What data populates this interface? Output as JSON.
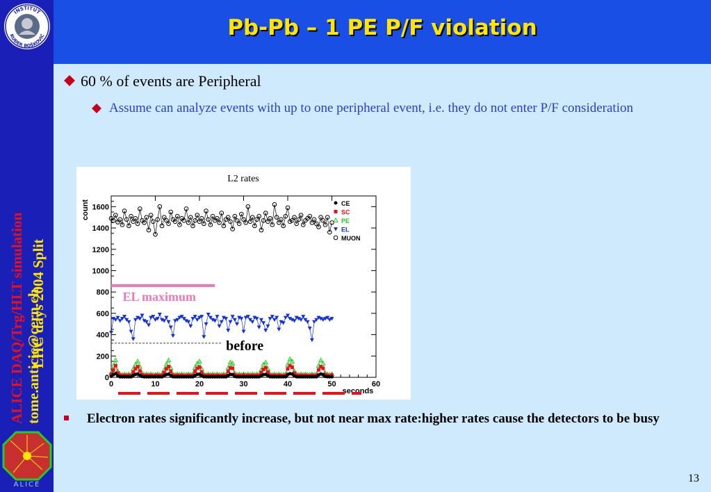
{
  "title": "Pb-Pb – 1 PE P/F violation",
  "sidebar": {
    "red_text": "ALICE DAQ/Trg/HLT simulation",
    "yellow_text": "LHC days 2004 Split",
    "author_email": "tome.anticic@cern.ch",
    "institute_logo_text_top": "INSTITUT",
    "institute_logo_text_bottom": "RUĐER BOŠKOVIĆ",
    "alice_logo_text": "ALICE"
  },
  "bullets": {
    "b1": "60 % of events are Peripheral",
    "b2": "Assume can analyze events with up to one peripheral event, i.e. they do not enter P/F consideration",
    "b3": "Electron rates significantly increase, but not near max rate:higher rates cause the detectors to be busy"
  },
  "colors": {
    "background": "#cfeafd",
    "sidebar": "#1a1fb8",
    "header": "#1a4fe6",
    "title": "#ffe600",
    "sub_bullet": "#2b3fc4",
    "el_max": "#f078b4",
    "dash_red": "#e8101a"
  },
  "page_number": "13",
  "chart_data": {
    "type": "scatter",
    "title": "L2 rates",
    "xlabel": "seconds",
    "ylabel": "count",
    "xlim": [
      0,
      60
    ],
    "ylim": [
      0,
      1700
    ],
    "xticks": [
      "0",
      "10",
      "20",
      "30",
      "40",
      "50",
      "60"
    ],
    "yticks": [
      "0",
      "200",
      "400",
      "600",
      "800",
      "1000",
      "1200",
      "1400",
      "1600"
    ],
    "legend": {
      "placement": "top-right",
      "entries": [
        {
          "name": "CE",
          "color": "#000000",
          "marker": "circle-filled"
        },
        {
          "name": "SC",
          "color": "#e8101a",
          "marker": "square"
        },
        {
          "name": "PE",
          "color": "#22cc22",
          "marker": "triangle-up-open"
        },
        {
          "name": "EL",
          "color": "#1030e0",
          "marker": "triangle-down"
        },
        {
          "name": "MUON",
          "color": "#000000",
          "marker": "circle-open"
        }
      ]
    },
    "annotations": {
      "el_maximum_label": "EL maximum",
      "el_maximum_value": 860,
      "el_maximum_x_range": [
        0,
        23.5
      ],
      "before_label": "before",
      "before_line_value": 320
    },
    "series": [
      {
        "name": "MUON",
        "x": [
          0,
          0.5,
          1,
          1.5,
          2,
          2.5,
          3,
          3.5,
          4,
          4.5,
          5,
          5.5,
          6,
          6.5,
          7,
          7.5,
          8,
          8.5,
          9,
          9.5,
          10,
          10.5,
          11,
          11.5,
          12,
          12.5,
          13,
          13.5,
          14,
          14.5,
          15,
          15.5,
          16,
          16.5,
          17,
          17.5,
          18,
          18.5,
          19,
          19.5,
          20,
          20.5,
          21,
          21.5,
          22,
          22.5,
          23,
          23.5,
          24,
          24.5,
          25,
          25.5,
          26,
          26.5,
          27,
          27.5,
          28,
          28.5,
          29,
          29.5,
          30,
          30.5,
          31,
          31.5,
          32,
          32.5,
          33,
          33.5,
          34,
          34.5,
          35,
          35.5,
          36,
          36.5,
          37,
          37.5,
          38,
          38.5,
          39,
          39.5,
          40,
          40.5,
          41,
          41.5,
          42,
          42.5,
          43,
          43.5,
          44,
          44.5,
          45,
          45.5,
          46,
          46.5,
          47,
          47.5,
          48,
          48.5,
          49,
          49.5,
          50
        ],
        "y": [
          1490,
          1470,
          1520,
          1455,
          1480,
          1430,
          1560,
          1480,
          1420,
          1510,
          1460,
          1490,
          1440,
          1580,
          1470,
          1450,
          1500,
          1380,
          1520,
          1460,
          1340,
          1480,
          1600,
          1420,
          1500,
          1470,
          1440,
          1550,
          1480,
          1460,
          1510,
          1430,
          1490,
          1470,
          1580,
          1450,
          1500,
          1420,
          1470,
          1520,
          1460,
          1490,
          1440,
          1560,
          1480,
          1430,
          1510,
          1470,
          1490,
          1450,
          1540,
          1420,
          1480,
          1500,
          1460,
          1390,
          1510,
          1470,
          1440,
          1530,
          1480,
          1450,
          1600,
          1460,
          1500,
          1420,
          1480,
          1510,
          1380,
          1470,
          1540,
          1460,
          1490,
          1430,
          1620,
          1500,
          1450,
          1480,
          1420,
          1510,
          1590,
          1460,
          1470,
          1500,
          1440,
          1480,
          1520,
          1430,
          1470,
          1490,
          1510,
          1450,
          1480,
          1440,
          1410,
          1500,
          1470,
          1430,
          1500,
          1360,
          1450
        ]
      },
      {
        "name": "EL",
        "x": [
          0,
          0.5,
          1,
          1.5,
          2,
          2.5,
          3,
          3.5,
          4,
          4.5,
          5,
          5.5,
          6,
          6.5,
          7,
          7.5,
          8,
          8.5,
          9,
          9.5,
          10,
          10.5,
          11,
          11.5,
          12,
          12.5,
          13,
          13.5,
          14,
          14.5,
          15,
          15.5,
          16,
          16.5,
          17,
          17.5,
          18,
          18.5,
          19,
          19.5,
          20,
          20.5,
          21,
          21.5,
          22,
          22.5,
          23,
          23.5,
          24,
          24.5,
          25,
          25.5,
          26,
          26.5,
          27,
          27.5,
          28,
          28.5,
          29,
          29.5,
          30,
          30.5,
          31,
          31.5,
          32,
          32.5,
          33,
          33.5,
          34,
          34.5,
          35,
          35.5,
          36,
          36.5,
          37,
          37.5,
          38,
          38.5,
          39,
          39.5,
          40,
          40.5,
          41,
          41.5,
          42,
          42.5,
          43,
          43.5,
          44,
          44.5,
          45,
          45.5,
          46,
          46.5,
          47,
          47.5,
          48,
          48.5,
          49,
          49.5,
          50
        ],
        "y": [
          420,
          550,
          540,
          560,
          530,
          550,
          570,
          540,
          520,
          430,
          360,
          540,
          560,
          550,
          580,
          530,
          520,
          490,
          560,
          570,
          540,
          550,
          590,
          540,
          530,
          560,
          520,
          470,
          390,
          530,
          540,
          560,
          570,
          550,
          530,
          520,
          480,
          550,
          570,
          540,
          560,
          570,
          380,
          500,
          590,
          560,
          540,
          530,
          570,
          480,
          520,
          560,
          550,
          440,
          520,
          570,
          540,
          500,
          560,
          550,
          430,
          560,
          570,
          540,
          520,
          560,
          550,
          470,
          540,
          510,
          440,
          480,
          550,
          570,
          540,
          560,
          450,
          520,
          510,
          560,
          580,
          550,
          540,
          530,
          560,
          550,
          540,
          570,
          540,
          520,
          460,
          350,
          520,
          540,
          560,
          550,
          540,
          550,
          560,
          540,
          550
        ]
      },
      {
        "name": "PE",
        "x": [
          0,
          0.5,
          1,
          1.5,
          2,
          2.5,
          3,
          3.5,
          4,
          4.5,
          5,
          5.5,
          6,
          6.5,
          7,
          7.5,
          8,
          8.5,
          9,
          9.5,
          10,
          10.5,
          11,
          11.5,
          12,
          12.5,
          13,
          13.5,
          14,
          14.5,
          15,
          15.5,
          16,
          16.5,
          17,
          17.5,
          18,
          18.5,
          19,
          19.5,
          20,
          20.5,
          21,
          21.5,
          22,
          22.5,
          23,
          23.5,
          24,
          24.5,
          25,
          25.5,
          26,
          26.5,
          27,
          27.5,
          28,
          28.5,
          29,
          29.5,
          30,
          30.5,
          31,
          31.5,
          32,
          32.5,
          33,
          33.5,
          34,
          34.5,
          35,
          35.5,
          36,
          36.5,
          37,
          37.5,
          38,
          38.5,
          39,
          39.5,
          40,
          40.5,
          41,
          41.5,
          42,
          42.5,
          43,
          43.5,
          44,
          44.5,
          45,
          45.5,
          46,
          46.5,
          47,
          47.5,
          48,
          48.5,
          49,
          49.5,
          50
        ],
        "y": [
          40,
          110,
          160,
          60,
          30,
          25,
          30,
          25,
          30,
          25,
          80,
          120,
          150,
          100,
          40,
          25,
          30,
          25,
          30,
          25,
          25,
          30,
          25,
          30,
          70,
          120,
          160,
          90,
          30,
          25,
          30,
          25,
          30,
          25,
          25,
          30,
          25,
          30,
          90,
          130,
          150,
          80,
          30,
          25,
          30,
          25,
          30,
          25,
          30,
          25,
          25,
          30,
          25,
          90,
          140,
          130,
          40,
          25,
          30,
          25,
          30,
          25,
          30,
          25,
          30,
          25,
          30,
          25,
          70,
          120,
          140,
          80,
          30,
          25,
          30,
          25,
          30,
          25,
          25,
          30,
          120,
          170,
          150,
          60,
          30,
          25,
          30,
          25,
          30,
          25,
          25,
          30,
          25,
          30,
          110,
          160,
          130,
          40,
          30,
          25,
          30
        ]
      },
      {
        "name": "SC",
        "x": [
          0,
          0.5,
          1,
          1.5,
          2,
          2.5,
          3,
          3.5,
          4,
          4.5,
          5,
          5.5,
          6,
          6.5,
          7,
          7.5,
          8,
          8.5,
          9,
          9.5,
          10,
          10.5,
          11,
          11.5,
          12,
          12.5,
          13,
          13.5,
          14,
          14.5,
          15,
          15.5,
          16,
          16.5,
          17,
          17.5,
          18,
          18.5,
          19,
          19.5,
          20,
          20.5,
          21,
          21.5,
          22,
          22.5,
          23,
          23.5,
          24,
          24.5,
          25,
          25.5,
          26,
          26.5,
          27,
          27.5,
          28,
          28.5,
          29,
          29.5,
          30,
          30.5,
          31,
          31.5,
          32,
          32.5,
          33,
          33.5,
          34,
          34.5,
          35,
          35.5,
          36,
          36.5,
          37,
          37.5,
          38,
          38.5,
          39,
          39.5,
          40,
          40.5,
          41,
          41.5,
          42,
          42.5,
          43,
          43.5,
          44,
          44.5,
          45,
          45.5,
          46,
          46.5,
          47,
          47.5,
          48,
          48.5,
          49,
          49.5,
          50
        ],
        "y": [
          30,
          70,
          110,
          40,
          20,
          15,
          20,
          15,
          20,
          15,
          50,
          80,
          100,
          60,
          25,
          15,
          20,
          15,
          20,
          15,
          15,
          20,
          15,
          20,
          45,
          80,
          100,
          55,
          20,
          15,
          20,
          15,
          20,
          15,
          15,
          20,
          15,
          20,
          55,
          85,
          95,
          50,
          20,
          15,
          20,
          15,
          20,
          15,
          20,
          15,
          15,
          20,
          15,
          55,
          90,
          85,
          25,
          15,
          20,
          15,
          20,
          15,
          20,
          15,
          20,
          15,
          20,
          15,
          45,
          75,
          90,
          50,
          20,
          15,
          20,
          15,
          20,
          15,
          15,
          20,
          80,
          110,
          95,
          40,
          20,
          15,
          20,
          15,
          20,
          15,
          15,
          20,
          15,
          20,
          70,
          100,
          85,
          25,
          20,
          15,
          20
        ]
      },
      {
        "name": "CE",
        "x": [
          0,
          0.5,
          1,
          1.5,
          2,
          2.5,
          3,
          3.5,
          4,
          4.5,
          5,
          5.5,
          6,
          6.5,
          7,
          7.5,
          8,
          8.5,
          9,
          9.5,
          10,
          10.5,
          11,
          11.5,
          12,
          12.5,
          13,
          13.5,
          14,
          14.5,
          15,
          15.5,
          16,
          16.5,
          17,
          17.5,
          18,
          18.5,
          19,
          19.5,
          20,
          20.5,
          21,
          21.5,
          22,
          22.5,
          23,
          23.5,
          24,
          24.5,
          25,
          25.5,
          26,
          26.5,
          27,
          27.5,
          28,
          28.5,
          29,
          29.5,
          30,
          30.5,
          31,
          31.5,
          32,
          32.5,
          33,
          33.5,
          34,
          34.5,
          35,
          35.5,
          36,
          36.5,
          37,
          37.5,
          38,
          38.5,
          39,
          39.5,
          40,
          40.5,
          41,
          41.5,
          42,
          42.5,
          43,
          43.5,
          44,
          44.5,
          45,
          45.5,
          46,
          46.5,
          47,
          47.5,
          48,
          48.5,
          49,
          49.5,
          50
        ],
        "y": [
          10,
          25,
          35,
          15,
          5,
          5,
          5,
          5,
          5,
          5,
          18,
          28,
          32,
          20,
          8,
          5,
          5,
          5,
          5,
          5,
          5,
          5,
          5,
          5,
          15,
          26,
          30,
          18,
          6,
          5,
          5,
          5,
          5,
          5,
          5,
          5,
          5,
          5,
          18,
          28,
          30,
          16,
          6,
          5,
          5,
          5,
          5,
          5,
          5,
          5,
          5,
          5,
          5,
          18,
          28,
          26,
          8,
          5,
          5,
          5,
          5,
          5,
          5,
          5,
          5,
          5,
          5,
          5,
          15,
          25,
          28,
          16,
          6,
          5,
          5,
          5,
          5,
          5,
          5,
          5,
          26,
          34,
          30,
          12,
          6,
          5,
          5,
          5,
          5,
          5,
          5,
          5,
          5,
          5,
          22,
          32,
          26,
          8,
          6,
          5,
          5
        ]
      }
    ]
  }
}
